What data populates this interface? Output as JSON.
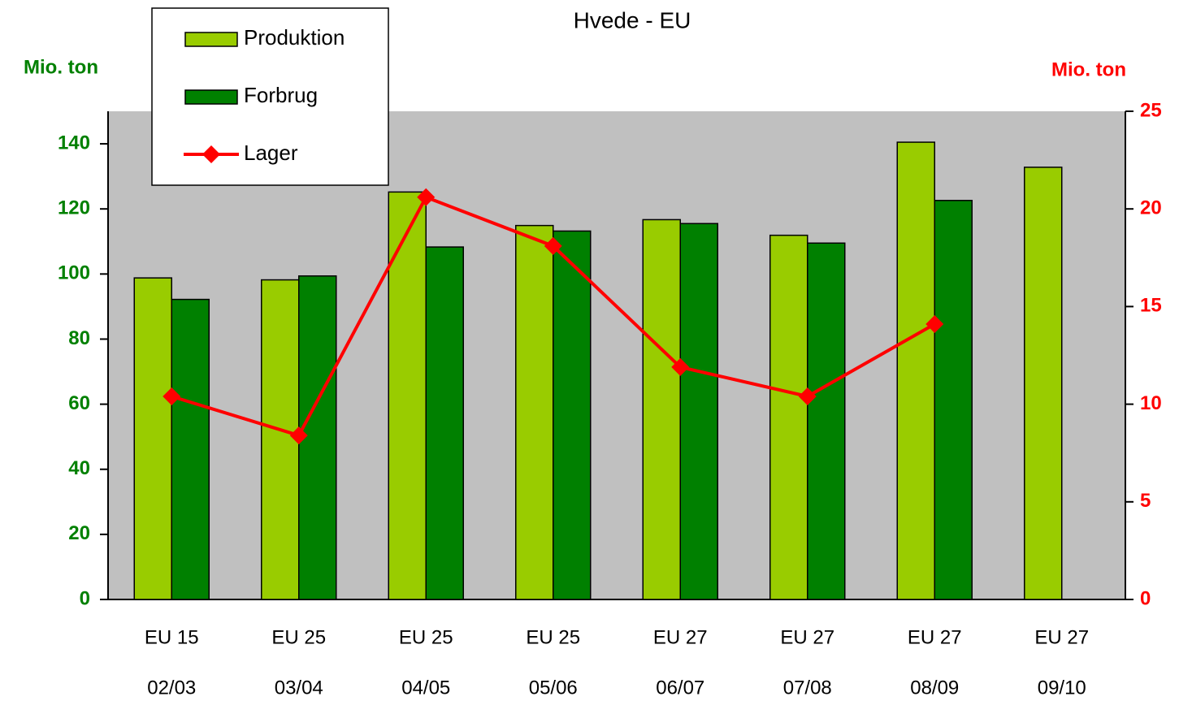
{
  "chart_data": {
    "type": "bar_line",
    "title": "Hvede - EU",
    "y_label": "Mio. ton",
    "y2_label": "Mio. ton",
    "category_groups": [
      "EU 15",
      "EU 25",
      "EU 25",
      "EU 25",
      "EU 27",
      "EU 27",
      "EU 27",
      "EU 27"
    ],
    "categories": [
      "02/03",
      "03/04",
      "04/05",
      "05/06",
      "06/07",
      "07/08",
      "08/09",
      "09/10"
    ],
    "series": [
      {
        "name": "Produktion",
        "type": "bar",
        "color": "#99cc00",
        "values": [
          98.8,
          98.2,
          125.2,
          114.9,
          116.7,
          111.9,
          140.5,
          132.8
        ]
      },
      {
        "name": "Forbrug",
        "type": "bar",
        "color": "#008000",
        "values": [
          92.2,
          99.4,
          108.3,
          113.2,
          115.5,
          109.5,
          122.6,
          null
        ]
      },
      {
        "name": "Lager",
        "type": "line",
        "axis": "y2",
        "color": "#ff0000",
        "values": [
          10.4,
          8.4,
          20.6,
          18.1,
          11.9,
          10.4,
          14.1,
          null
        ]
      }
    ],
    "ylim": [
      0,
      150
    ],
    "yticks": [
      0,
      20,
      40,
      60,
      80,
      100,
      120,
      140
    ],
    "y2lim": [
      0,
      25
    ],
    "y2ticks": [
      0,
      5,
      10,
      15,
      20,
      25
    ],
    "y_color": "#008000",
    "y2_color": "#ff0000",
    "plot_background": "#c0c0c0"
  }
}
